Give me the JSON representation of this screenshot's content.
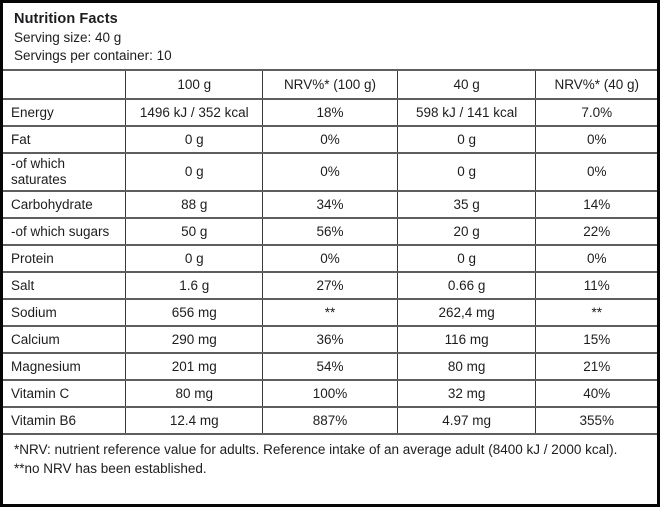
{
  "colors": {
    "text": "#1d1d1f",
    "outer_border": "#050505",
    "grid_line": "#5e5e60",
    "background": "#ffffff"
  },
  "label_header": {
    "title": "Nutrition Facts",
    "serving_size": "Serving size: 40 g",
    "servings_per_container": "Servings per container: 10"
  },
  "table": {
    "columns": {
      "nutrient": "",
      "per_100g": "100 g",
      "nrv_100g": "NRV%* (100 g)",
      "per_40g": "40 g",
      "nrv_40g": "NRV%* (40 g)"
    },
    "rows": [
      {
        "label": "Energy",
        "per_100g": "1496 kJ / 352 kcal",
        "nrv_100g": "18%",
        "per_40g": "598 kJ / 141 kcal",
        "nrv_40g": "7.0%"
      },
      {
        "label": "Fat",
        "per_100g": "0 g",
        "nrv_100g": "0%",
        "per_40g": "0 g",
        "nrv_40g": "0%"
      },
      {
        "label": "-of which saturates",
        "per_100g": "0 g",
        "nrv_100g": "0%",
        "per_40g": "0 g",
        "nrv_40g": "0%"
      },
      {
        "label": "Carbohydrate",
        "per_100g": "88 g",
        "nrv_100g": "34%",
        "per_40g": "35 g",
        "nrv_40g": "14%"
      },
      {
        "label": "-of which sugars",
        "per_100g": "50 g",
        "nrv_100g": "56%",
        "per_40g": "20 g",
        "nrv_40g": "22%"
      },
      {
        "label": "Protein",
        "per_100g": "0 g",
        "nrv_100g": "0%",
        "per_40g": "0 g",
        "nrv_40g": "0%"
      },
      {
        "label": "Salt",
        "per_100g": "1.6 g",
        "nrv_100g": "27%",
        "per_40g": "0.66 g",
        "nrv_40g": "11%"
      },
      {
        "label": "Sodium",
        "per_100g": "656 mg",
        "nrv_100g": "**",
        "per_40g": "262,4 mg",
        "nrv_40g": "**"
      },
      {
        "label": "Calcium",
        "per_100g": "290 mg",
        "nrv_100g": "36%",
        "per_40g": "116 mg",
        "nrv_40g": "15%"
      },
      {
        "label": "Magnesium",
        "per_100g": "201 mg",
        "nrv_100g": "54%",
        "per_40g": "80 mg",
        "nrv_40g": "21%"
      },
      {
        "label": "Vitamin C",
        "per_100g": "80 mg",
        "nrv_100g": "100%",
        "per_40g": "32 mg",
        "nrv_40g": "40%"
      },
      {
        "label": "Vitamin B6",
        "per_100g": "12.4 mg",
        "nrv_100g": "887%",
        "per_40g": "4.97 mg",
        "nrv_40g": "355%"
      }
    ]
  },
  "footnote": "*NRV: nutrient reference value for adults. Reference intake of an average adult (8400 kJ / 2000 kcal). **no NRV has been established."
}
